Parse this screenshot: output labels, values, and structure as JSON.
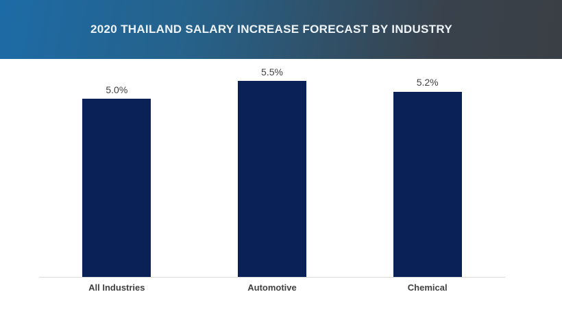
{
  "header": {
    "title": "2020 THAILAND SALARY INCREASE FORECAST BY INDUSTRY",
    "gradient_left_color": "#1d6ba6",
    "gradient_right_color": "#3a3f45",
    "title_color": "#eef4f8"
  },
  "chart_data": {
    "type": "bar",
    "title": "2020 THAILAND SALARY INCREASE FORECAST BY INDUSTRY",
    "categories": [
      "All Industries",
      "Automotive",
      "Chemical"
    ],
    "values": [
      5.0,
      5.5,
      5.2
    ],
    "value_labels": [
      "5.0%",
      "5.5%",
      "5.2%"
    ],
    "xlabel": "",
    "ylabel": "",
    "ylim": [
      0,
      6
    ],
    "grid": false,
    "legend": false,
    "bar_color": "#0a2158",
    "value_label_color": "#404040",
    "category_label_color": "#404040",
    "axis_line_color": "#d9d9d9"
  }
}
